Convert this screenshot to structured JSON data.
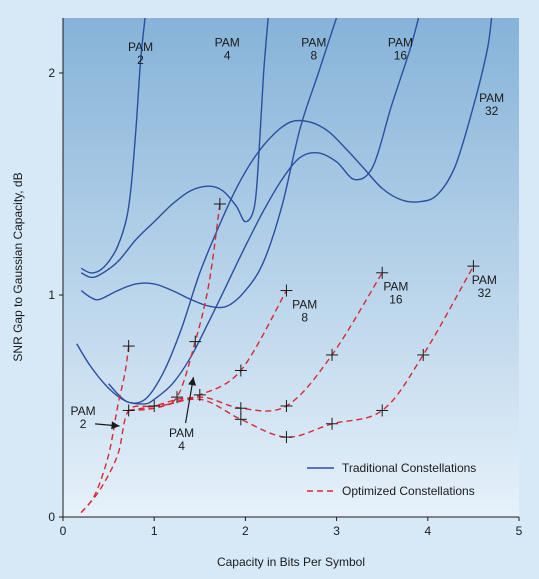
{
  "chart_data": {
    "type": "line",
    "title": "",
    "xlabel": "Capacity in Bits Per Symbol",
    "ylabel": "SNR Gap to Gaussian Capacity, dB",
    "xlim": [
      0,
      5
    ],
    "ylim": [
      0,
      2.2
    ],
    "xticks": [
      "0",
      "1",
      "2",
      "3",
      "4",
      "5"
    ],
    "yticks": [
      "0",
      "1",
      "2"
    ],
    "grid": false,
    "legend_position": "bottom-right",
    "legend": [
      "Traditional Constellations",
      "Optimized Constellations"
    ],
    "colors": {
      "traditional": "#2a4fa0",
      "optimized": "#d62a35",
      "plot_bg_top": "#86b3d8",
      "plot_bg_bottom": "#e6f1fa",
      "page_bg": "#d7e9f7"
    },
    "traditional_series": [
      {
        "name": "PAM 2",
        "points": [
          [
            0.2,
            1.12
          ],
          [
            0.3,
            1.1
          ],
          [
            0.4,
            1.11
          ],
          [
            0.5,
            1.15
          ],
          [
            0.6,
            1.22
          ],
          [
            0.7,
            1.35
          ],
          [
            0.75,
            1.5
          ],
          [
            0.8,
            1.75
          ],
          [
            0.85,
            2.05
          ],
          [
            0.9,
            2.25
          ]
        ]
      },
      {
        "name": "PAM 4",
        "points": [
          [
            0.2,
            1.1
          ],
          [
            0.3,
            1.08
          ],
          [
            0.4,
            1.09
          ],
          [
            0.6,
            1.15
          ],
          [
            0.8,
            1.25
          ],
          [
            1.0,
            1.33
          ],
          [
            1.2,
            1.41
          ],
          [
            1.4,
            1.47
          ],
          [
            1.6,
            1.49
          ],
          [
            1.75,
            1.47
          ],
          [
            1.9,
            1.4
          ],
          [
            2.0,
            1.33
          ],
          [
            2.1,
            1.4
          ],
          [
            2.15,
            1.65
          ],
          [
            2.2,
            2.0
          ],
          [
            2.25,
            2.25
          ]
        ]
      },
      {
        "name": "PAM 8",
        "points": [
          [
            0.2,
            1.02
          ],
          [
            0.3,
            0.99
          ],
          [
            0.4,
            0.98
          ],
          [
            0.6,
            1.02
          ],
          [
            0.8,
            1.05
          ],
          [
            1.0,
            1.05
          ],
          [
            1.2,
            1.02
          ],
          [
            1.4,
            0.98
          ],
          [
            1.6,
            0.95
          ],
          [
            1.8,
            0.95
          ],
          [
            2.0,
            1.02
          ],
          [
            2.2,
            1.15
          ],
          [
            2.4,
            1.4
          ],
          [
            2.6,
            1.75
          ],
          [
            2.8,
            2.0
          ],
          [
            3.0,
            2.25
          ]
        ]
      },
      {
        "name": "PAM 16",
        "points": [
          [
            0.15,
            0.78
          ],
          [
            0.3,
            0.68
          ],
          [
            0.5,
            0.58
          ],
          [
            0.7,
            0.52
          ],
          [
            0.9,
            0.51
          ],
          [
            1.0,
            0.53
          ],
          [
            1.2,
            0.6
          ],
          [
            1.4,
            0.72
          ],
          [
            1.6,
            0.88
          ],
          [
            1.8,
            1.05
          ],
          [
            2.0,
            1.22
          ],
          [
            2.2,
            1.38
          ],
          [
            2.4,
            1.52
          ],
          [
            2.6,
            1.62
          ],
          [
            2.8,
            1.64
          ],
          [
            3.0,
            1.6
          ],
          [
            3.2,
            1.52
          ],
          [
            3.4,
            1.58
          ],
          [
            3.6,
            1.85
          ],
          [
            3.8,
            2.1
          ],
          [
            3.9,
            2.25
          ]
        ]
      },
      {
        "name": "PAM 32",
        "points": [
          [
            0.5,
            0.6
          ],
          [
            0.7,
            0.52
          ],
          [
            0.9,
            0.53
          ],
          [
            1.1,
            0.65
          ],
          [
            1.3,
            0.85
          ],
          [
            1.5,
            1.1
          ],
          [
            1.7,
            1.3
          ],
          [
            1.9,
            1.48
          ],
          [
            2.1,
            1.62
          ],
          [
            2.3,
            1.72
          ],
          [
            2.5,
            1.78
          ],
          [
            2.7,
            1.78
          ],
          [
            2.9,
            1.74
          ],
          [
            3.1,
            1.66
          ],
          [
            3.3,
            1.57
          ],
          [
            3.5,
            1.48
          ],
          [
            3.7,
            1.43
          ],
          [
            3.9,
            1.42
          ],
          [
            4.1,
            1.45
          ],
          [
            4.3,
            1.58
          ],
          [
            4.5,
            1.85
          ],
          [
            4.65,
            2.1
          ],
          [
            4.7,
            2.25
          ]
        ]
      }
    ],
    "optimized_series": [
      {
        "name": "PAM 2",
        "points": [
          [
            0.2,
            0.02
          ],
          [
            0.35,
            0.1
          ],
          [
            0.5,
            0.28
          ],
          [
            0.6,
            0.5
          ],
          [
            0.68,
            0.65
          ],
          [
            0.72,
            0.77
          ]
        ]
      },
      {
        "name": "PAM 4",
        "points": [
          [
            0.2,
            0.02
          ],
          [
            0.4,
            0.12
          ],
          [
            0.6,
            0.28
          ],
          [
            0.72,
            0.48
          ],
          [
            1.0,
            0.5
          ],
          [
            1.25,
            0.54
          ],
          [
            1.45,
            0.79
          ],
          [
            1.6,
            1.05
          ],
          [
            1.72,
            1.41
          ]
        ]
      },
      {
        "name": "PAM 8",
        "points": [
          [
            0.72,
            0.48
          ],
          [
            1.0,
            0.5
          ],
          [
            1.25,
            0.53
          ],
          [
            1.5,
            0.55
          ],
          [
            1.95,
            0.66
          ],
          [
            2.45,
            1.02
          ]
        ]
      },
      {
        "name": "PAM 16",
        "points": [
          [
            0.72,
            0.48
          ],
          [
            1.0,
            0.49
          ],
          [
            1.5,
            0.54
          ],
          [
            1.95,
            0.49
          ],
          [
            2.45,
            0.5
          ],
          [
            2.95,
            0.73
          ],
          [
            3.5,
            1.1
          ]
        ]
      },
      {
        "name": "PAM 32",
        "points": [
          [
            0.72,
            0.48
          ],
          [
            1.0,
            0.49
          ],
          [
            1.5,
            0.53
          ],
          [
            1.95,
            0.44
          ],
          [
            2.45,
            0.36
          ],
          [
            2.95,
            0.42
          ],
          [
            3.5,
            0.48
          ],
          [
            3.95,
            0.73
          ],
          [
            4.5,
            1.13
          ]
        ]
      }
    ],
    "markers": [
      [
        0.72,
        0.77
      ],
      [
        0.72,
        0.48
      ],
      [
        1.0,
        0.5
      ],
      [
        1.25,
        0.54
      ],
      [
        1.45,
        0.79
      ],
      [
        1.5,
        0.55
      ],
      [
        1.72,
        1.41
      ],
      [
        1.95,
        0.66
      ],
      [
        1.95,
        0.49
      ],
      [
        1.95,
        0.44
      ],
      [
        2.45,
        1.02
      ],
      [
        2.45,
        0.5
      ],
      [
        2.45,
        0.36
      ],
      [
        2.95,
        0.73
      ],
      [
        2.95,
        0.42
      ],
      [
        3.5,
        1.1
      ],
      [
        3.5,
        0.48
      ],
      [
        3.95,
        0.73
      ],
      [
        4.5,
        1.13
      ]
    ],
    "annotations": {
      "traditional_labels": [
        {
          "line1": "PAM",
          "line2": "2",
          "x": 0.85,
          "y": 2.1
        },
        {
          "line1": "PAM",
          "line2": "4",
          "x": 1.8,
          "y": 2.12
        },
        {
          "line1": "PAM",
          "line2": "8",
          "x": 2.75,
          "y": 2.12
        },
        {
          "line1": "PAM",
          "line2": "16",
          "x": 3.7,
          "y": 2.12
        },
        {
          "line1": "PAM",
          "line2": "32",
          "x": 4.7,
          "y": 1.87
        }
      ],
      "optimized_labels": [
        {
          "line1": "PAM",
          "line2": "8",
          "x": 2.65,
          "y": 0.94
        },
        {
          "line1": "PAM",
          "line2": "16",
          "x": 3.65,
          "y": 1.02
        },
        {
          "line1": "PAM",
          "line2": "32",
          "x": 4.62,
          "y": 1.05
        }
      ],
      "arrow_labels": [
        {
          "line1": "PAM",
          "line2": "2",
          "x": 0.22,
          "y": 0.46,
          "arrow_to": [
            0.62,
            0.41
          ]
        },
        {
          "line1": "PAM",
          "line2": "4",
          "x": 1.3,
          "y": 0.36,
          "arrow_to": [
            1.43,
            0.63
          ]
        }
      ]
    }
  }
}
